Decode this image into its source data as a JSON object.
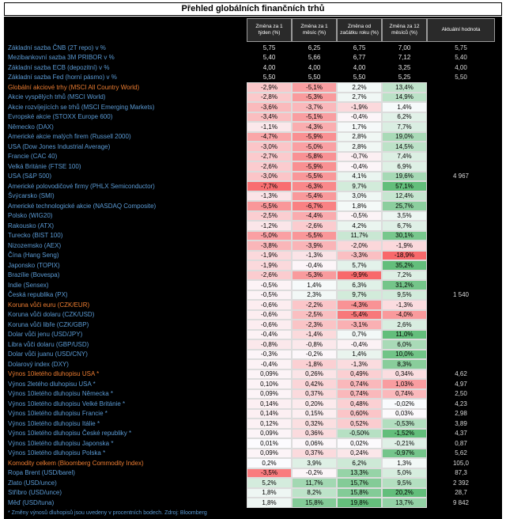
{
  "title": "Přehled globálních finančních trhů",
  "columns": {
    "periods": [
      "Změna za 1 týden (%)",
      "Změna za 1 měsíc (%)",
      "Změna od začátku roku (%)",
      "Změna za 12 měsíců (%)"
    ],
    "last_header": "Aktuální hodnota"
  },
  "colors": {
    "label_blue": "#5b9bd5",
    "label_orange": "#ed7d31",
    "heat_red": "#F8696B",
    "heat_green": "#63BE7B",
    "heat_white": "#FCFCFF"
  },
  "top_rows": [
    {
      "label": "Základní sazba ČNB (2T repo) v %",
      "values": [
        "5,75",
        "6,25",
        "6,75",
        "7,00"
      ],
      "last": "5,75"
    },
    {
      "label": "Mezibankovní sazba 3M PRIBOR v %",
      "values": [
        "5,40",
        "5,66",
        "6,77",
        "7,12"
      ],
      "last": "5,40"
    },
    {
      "label": "Základní sazba ECB (depozitní) v %",
      "values": [
        "4,00",
        "4,00",
        "4,00",
        "3,25"
      ],
      "last": "4,00"
    },
    {
      "label": "Základní sazba Fed (horní pásmo) v %",
      "values": [
        "5,50",
        "5,50",
        "5,50",
        "5,25"
      ],
      "last": "5,50"
    }
  ],
  "sections": [
    {
      "name": "akciove-trhy",
      "scale": {
        "min": -8,
        "max": 35,
        "invert": false,
        "decimals": 1
      },
      "rows": [
        {
          "label": "Globální akciové trhy (MSCI All Country World)",
          "lead": true,
          "values": [
            -2.9,
            -5.1,
            2.2,
            13.4
          ],
          "last": ""
        },
        {
          "label": "Akcie vyspělých trhů (MSCI World)",
          "lead": false,
          "values": [
            -2.8,
            -5.3,
            2.7,
            14.9
          ],
          "last": ""
        },
        {
          "label": "Akcie rozvíjejících se trhů (MSCI Emerging Markets)",
          "lead": false,
          "values": [
            -3.6,
            -3.7,
            -1.9,
            1.4
          ],
          "last": ""
        },
        {
          "label": "Evropské akcie (STOXX Europe 600)",
          "lead": false,
          "values": [
            -3.4,
            -5.1,
            -0.4,
            6.2
          ],
          "last": ""
        },
        {
          "label": "Německo (DAX)",
          "lead": false,
          "values": [
            -1.1,
            -4.3,
            1.7,
            7.7
          ],
          "last": ""
        },
        {
          "label": "Americké akcie malých firem (Russell 2000)",
          "lead": false,
          "values": [
            -4.7,
            -5.9,
            2.8,
            19.0
          ],
          "last": ""
        },
        {
          "label": "USA (Dow Jones Industrial Average)",
          "lead": false,
          "values": [
            -3.0,
            -5.0,
            2.8,
            14.5
          ],
          "last": ""
        },
        {
          "label": "Francie (CAC 40)",
          "lead": false,
          "values": [
            -2.7,
            -5.8,
            -0.7,
            7.4
          ],
          "last": ""
        },
        {
          "label": "Velká Británie (FTSE 100)",
          "lead": false,
          "values": [
            -2.6,
            -5.9,
            -0.4,
            6.9
          ],
          "last": ""
        },
        {
          "label": "USA (S&P 500)",
          "lead": false,
          "values": [
            -3.0,
            -5.5,
            4.1,
            19.6
          ],
          "last": "4 967"
        },
        {
          "label": "Americké polovodičové firmy (PHLX Semiconductor)",
          "lead": false,
          "values": [
            -7.7,
            -6.3,
            9.7,
            57.1
          ],
          "last": ""
        },
        {
          "label": "Švýcarsko (SMI)",
          "lead": false,
          "values": [
            -1.3,
            -5.4,
            3.0,
            12.4
          ],
          "last": ""
        },
        {
          "label": "Americké technologické akcie (NASDAQ Composite)",
          "lead": false,
          "values": [
            -5.5,
            -6.7,
            1.8,
            25.7
          ],
          "last": ""
        },
        {
          "label": "Polsko (WIG20)",
          "lead": false,
          "values": [
            -2.5,
            -4.4,
            -0.5,
            3.5
          ],
          "last": ""
        },
        {
          "label": "Rakousko (ATX)",
          "lead": false,
          "values": [
            -1.2,
            -2.6,
            4.2,
            6.7
          ],
          "last": ""
        },
        {
          "label": "Turecko (BIST 100)",
          "lead": false,
          "values": [
            -5.0,
            -5.5,
            11.7,
            30.1
          ],
          "last": ""
        },
        {
          "label": "Nizozemsko (AEX)",
          "lead": false,
          "values": [
            -3.8,
            -3.9,
            -2.0,
            -1.9
          ],
          "last": ""
        },
        {
          "label": "Čína (Hang Seng)",
          "lead": false,
          "values": [
            -1.9,
            -1.3,
            -3.3,
            -18.9
          ],
          "last": ""
        },
        {
          "label": "Japonsko (TOPIX)",
          "lead": false,
          "values": [
            -1.9,
            -0.4,
            5.7,
            35.2
          ],
          "last": ""
        },
        {
          "label": "Brazílie (Bovespa)",
          "lead": false,
          "values": [
            -2.6,
            -5.3,
            -9.9,
            7.2
          ],
          "last": ""
        },
        {
          "label": "Indie (Sensex)",
          "lead": false,
          "values": [
            -0.5,
            1.4,
            6.3,
            31.2
          ],
          "last": ""
        },
        {
          "label": "Česká republika (PX)",
          "lead": false,
          "values": [
            -0.5,
            2.3,
            9.7,
            9.5
          ],
          "last": "1 540"
        }
      ]
    },
    {
      "name": "menove-trhy",
      "scale": {
        "min": -6,
        "max": 11,
        "invert": false,
        "decimals": 1
      },
      "rows": [
        {
          "label": "Koruna vůči euru (CZK/EUR)",
          "lead": true,
          "values": [
            -0.6,
            -2.2,
            -4.3,
            -1.3
          ],
          "last": ""
        },
        {
          "label": "Koruna vůči dolaru (CZK/USD)",
          "lead": false,
          "values": [
            -0.6,
            -2.5,
            -5.4,
            -4.0
          ],
          "last": ""
        },
        {
          "label": "Koruna vůči libře (CZK/GBP)",
          "lead": false,
          "values": [
            -0.6,
            -2.3,
            -3.1,
            2.6
          ],
          "last": ""
        },
        {
          "label": "Dolar vůči jenu (USD/JPY)",
          "lead": false,
          "values": [
            -0.4,
            -1.4,
            0.7,
            11.0
          ],
          "last": ""
        },
        {
          "label": "Libra vůči dolaru (GBP/USD)",
          "lead": false,
          "values": [
            -0.8,
            -0.8,
            -0.4,
            6.0
          ],
          "last": ""
        },
        {
          "label": "Dolar vůči juanu (USD/CNY)",
          "lead": false,
          "values": [
            -0.3,
            -0.2,
            1.4,
            10.0
          ],
          "last": ""
        },
        {
          "label": "Dolarový index (DXY)",
          "lead": false,
          "values": [
            -0.4,
            -1.8,
            -1.3,
            8.3
          ],
          "last": ""
        }
      ]
    },
    {
      "name": "dluhopisove-trhy",
      "scale": {
        "min": -1.6,
        "max": 1.1,
        "invert": true,
        "decimals": 2
      },
      "rows": [
        {
          "label": "Výnos 10letého dluhopisu USA *",
          "lead": true,
          "values": [
            0.09,
            0.26,
            0.49,
            0.34
          ],
          "last": "4,62"
        },
        {
          "label": "Výnos 2letého dluhopisu USA *",
          "lead": false,
          "values": [
            0.1,
            0.42,
            0.74,
            1.03
          ],
          "last": "4,97"
        },
        {
          "label": "Výnos 10letého dluhopisu Německa *",
          "lead": false,
          "values": [
            0.09,
            0.37,
            0.74,
            0.74
          ],
          "last": "2,50"
        },
        {
          "label": "Výnos 10letého dluhopisu Velké Británie *",
          "lead": false,
          "values": [
            0.14,
            0.2,
            0.48,
            -0.02
          ],
          "last": "4,23"
        },
        {
          "label": "Výnos 10letého dluhopisu Francie *",
          "lead": false,
          "values": [
            0.14,
            0.15,
            0.6,
            0.03
          ],
          "last": "2,98"
        },
        {
          "label": "Výnos 10letého dluhopisu Itálie *",
          "lead": false,
          "values": [
            0.12,
            0.32,
            0.52,
            -0.53
          ],
          "last": "3,89"
        },
        {
          "label": "Výnos 10letého dluhopisu České republiky *",
          "lead": false,
          "values": [
            0.09,
            0.36,
            -0.5,
            -1.52
          ],
          "last": "4,37"
        },
        {
          "label": "Výnos 10letého dluhopisu Japonska *",
          "lead": false,
          "values": [
            0.01,
            0.06,
            0.02,
            -0.21
          ],
          "last": "0,87"
        },
        {
          "label": "Výnos 10letého dluhopisu Polska *",
          "lead": false,
          "values": [
            0.09,
            0.37,
            0.24,
            -0.97
          ],
          "last": "5,62"
        }
      ]
    },
    {
      "name": "komoditni-trhy",
      "scale": {
        "min": -4,
        "max": 20,
        "invert": false,
        "decimals": 1
      },
      "rows": [
        {
          "label": "Komodity celkem (Bloomberg Commodity Index)",
          "lead": true,
          "values": [
            0.2,
            3.9,
            6.2,
            1.3
          ],
          "last": "105,0"
        },
        {
          "label": "Ropa Brent (USD/barel)",
          "lead": false,
          "values": [
            -3.5,
            -0.2,
            13.3,
            5.0
          ],
          "last": "87,3"
        },
        {
          "label": "Zlato (USD/unce)",
          "lead": false,
          "values": [
            5.2,
            11.7,
            15.7,
            9.5
          ],
          "last": "2 392"
        },
        {
          "label": "Stříbro (USD/unce)",
          "lead": false,
          "values": [
            1.8,
            8.2,
            15.8,
            20.2
          ],
          "last": "28,7"
        },
        {
          "label": "Měď (USD/tuna)",
          "lead": false,
          "values": [
            1.8,
            15.8,
            19.8,
            13.7
          ],
          "last": "9 842"
        }
      ]
    }
  ],
  "footnote": "* Změny výnosů dluhopisů jsou uvedeny v procentních bodech. Zdroj: Bloomberg"
}
